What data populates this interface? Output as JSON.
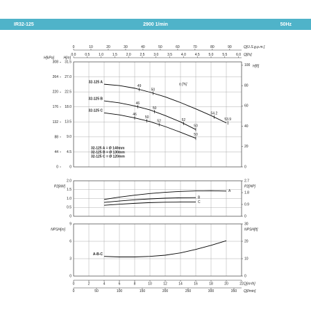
{
  "header": {
    "model": "IR32-125",
    "speed": "2900 1/min",
    "frequency": "50Hz"
  },
  "chart_data": [
    {
      "type": "line",
      "grid": true,
      "xlim": [
        0,
        22
      ],
      "xticks": [
        0,
        2,
        4,
        6,
        8,
        10,
        12,
        14,
        16,
        18,
        20,
        22
      ],
      "top_axes": [
        {
          "label": "Q[U.S.g.p.m.]",
          "lim": [
            0,
            96.86
          ],
          "ticks": [
            0,
            10,
            20,
            30,
            40,
            50,
            60,
            70,
            80,
            90
          ]
        },
        {
          "label": "Q[l/s]",
          "lim": [
            0,
            6.111
          ],
          "ticks": [
            {
              "value": 0,
              "label": "0.0"
            },
            0.5,
            {
              "value": 1,
              "label": "1.0"
            },
            1.5,
            {
              "value": 2,
              "label": "2.0"
            },
            2.5,
            {
              "value": 3,
              "label": "3.0"
            },
            3.5,
            {
              "value": 4,
              "label": "4.0"
            },
            4.5,
            {
              "value": 5,
              "label": "5.0"
            },
            5.5,
            {
              "value": 6,
              "label": "6.0"
            }
          ]
        }
      ],
      "ylabel": "H[m]",
      "ylim": [
        0,
        31.5
      ],
      "yticks": [
        0,
        4.5,
        {
          "value": 9,
          "label": "9.0"
        },
        13.5,
        {
          "value": 18,
          "label": "18.0"
        },
        22.5,
        {
          "value": 27,
          "label": "27.0"
        },
        31.5
      ],
      "y3label": "H[kPa]",
      "y3lim": [
        0,
        308.7
      ],
      "y3ticks": [
        0,
        44,
        88,
        132,
        176,
        220,
        264,
        308
      ],
      "y2label": "H[ft]",
      "y2lim": [
        0,
        103.35
      ],
      "y2ticks": [
        0,
        20,
        40,
        60,
        80,
        100
      ],
      "efficiency_label": "η [%]",
      "series": [
        {
          "name": "32-125 A",
          "color": "#000000",
          "x": [
            4,
            6,
            8,
            10,
            12,
            14,
            16,
            18,
            20
          ],
          "values": [
            24.8,
            24.4,
            23.6,
            22.4,
            21,
            19.3,
            17.4,
            15.4,
            13.2
          ],
          "efficiency": {
            "x": [
              8.6,
              10.4,
              18.4,
              20.2
            ],
            "values": [
              49,
              50,
              54.2,
              53.9
            ]
          }
        },
        {
          "name": "32-125 B",
          "color": "#000000",
          "x": [
            4,
            6,
            8,
            10,
            12,
            14,
            16
          ],
          "values": [
            19.8,
            19.2,
            18.3,
            17.1,
            15.4,
            13.5,
            11.2
          ],
          "efficiency": {
            "x": [
              8.4,
              10.6,
              14.4,
              16
            ],
            "values": [
              46,
              50,
              52,
              50
            ]
          }
        },
        {
          "name": "32-125 C",
          "color": "#000000",
          "x": [
            4,
            6,
            8,
            10,
            12,
            14,
            16
          ],
          "values": [
            16.2,
            15.6,
            14.7,
            13.6,
            12.1,
            10.4,
            8.6
          ],
          "efficiency": {
            "x": [
              8,
              9.6,
              11.2,
              16
            ],
            "values": [
              46,
              50,
              52,
              50
            ]
          }
        }
      ],
      "notes": [
        "32-125 A = Ø 140mm",
        "32-125 B = Ø 130mm",
        "32-125 C = Ø 120mm"
      ]
    },
    {
      "type": "line",
      "grid": true,
      "xlim": [
        0,
        22
      ],
      "xticks": [
        0,
        2,
        4,
        6,
        8,
        10,
        12,
        14,
        16,
        18,
        20,
        22
      ],
      "ylabel": "P2[kW]",
      "ylim": [
        0,
        2
      ],
      "yticks": [
        0,
        0.5,
        {
          "value": 1,
          "label": "1.0"
        },
        1.5,
        {
          "value": 2,
          "label": "2.0"
        }
      ],
      "y2label": "P2[HP]",
      "y2lim": [
        0,
        2.7
      ],
      "y2ticks": [
        0,
        0.9,
        1.8,
        2.7
      ],
      "series": [
        {
          "name": "A",
          "color": "#000000",
          "x": [
            4,
            6,
            8,
            10,
            12,
            14,
            16,
            18,
            20
          ],
          "values": [
            0.95,
            1.08,
            1.19,
            1.28,
            1.35,
            1.4,
            1.43,
            1.44,
            1.42
          ]
        },
        {
          "name": "B",
          "color": "#000000",
          "x": [
            4,
            6,
            8,
            10,
            12,
            14,
            16
          ],
          "values": [
            0.78,
            0.86,
            0.93,
            0.98,
            1.02,
            1.04,
            1.05
          ]
        },
        {
          "name": "C",
          "color": "#000000",
          "x": [
            4,
            6,
            8,
            10,
            12,
            14,
            16
          ],
          "values": [
            0.62,
            0.68,
            0.73,
            0.77,
            0.79,
            0.8,
            0.8
          ]
        }
      ]
    },
    {
      "type": "line",
      "grid": true,
      "xlabel": "Q[m³/h]",
      "xlim": [
        0,
        22
      ],
      "xticks": [
        0,
        2,
        4,
        6,
        8,
        10,
        12,
        14,
        16,
        18,
        20,
        22
      ],
      "bottom_axes": [
        {
          "label": "Q[l/min]",
          "lim": [
            0,
            366.7
          ],
          "ticks": [
            0,
            50,
            100,
            150,
            200,
            250,
            300,
            350
          ]
        }
      ],
      "ylabel": "NPSH[m]",
      "ylim": [
        0,
        9
      ],
      "yticks": [
        0,
        3,
        6,
        9
      ],
      "y2label": "NPSH[ft]",
      "y2lim": [
        0,
        30
      ],
      "y2ticks": [
        0,
        10,
        20,
        30
      ],
      "series": [
        {
          "name": "A-B-C",
          "color": "#000000",
          "x": [
            4,
            6,
            8,
            10,
            12,
            14,
            16,
            18,
            20
          ],
          "values": [
            3.4,
            3.3,
            3.3,
            3.4,
            3.6,
            4,
            4.6,
            5.3,
            6.1
          ]
        }
      ]
    }
  ]
}
